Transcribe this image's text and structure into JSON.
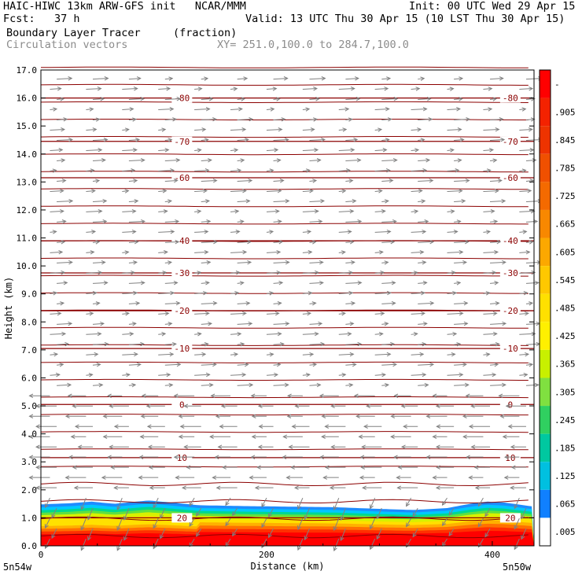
{
  "header": {
    "line1_left": "HAIC-HIWC 13km ARW-GFS init   NCAR/MMM",
    "line1_right": "Init: 00 UTC Wed 29 Apr 15",
    "line2_left": "Fcst:   37 h",
    "line2_right": "Valid: 13 UTC Thu 30 Apr 15 (10 LST Thu 30 Apr 15)",
    "field_name": "Boundary Layer Tracer",
    "field_units": "(fraction)",
    "vectors_label": "Circulation vectors",
    "cross_section": "XY= 251.0,100.0 to 284.7,100.0"
  },
  "chart_data": {
    "type": "heatmap",
    "title": "Boundary Layer Tracer",
    "units": "(fraction)",
    "xlabel": "Distance (km)",
    "ylabel": "Height (km)",
    "xlim": [
      0,
      437
    ],
    "ylim": [
      0,
      17
    ],
    "x_ticks": [
      0,
      200,
      400
    ],
    "y_ticks": [
      "0.0",
      "1.0",
      "2.0",
      "3.0",
      "4.0",
      "5.0",
      "6.0",
      "7.0",
      "8.0",
      "9.0",
      "10.0",
      "11.0",
      "12.0",
      "13.0",
      "14.0",
      "15.0",
      "16.0",
      "17.0"
    ],
    "x_end_labels": [
      "5n54w",
      "5n50w"
    ],
    "colorbar": {
      "labels": [
        "-",
        ".905",
        ".845",
        ".785",
        ".725",
        ".665",
        ".605",
        ".545",
        ".485",
        ".425",
        ".365",
        ".305",
        ".245",
        ".185",
        ".125",
        ".065",
        ".005"
      ],
      "colors": [
        "#ff0000",
        "#f42200",
        "#ee3300",
        "#f05000",
        "#f46a00",
        "#f88800",
        "#fca800",
        "#ffc800",
        "#ffe000",
        "#fff000",
        "#c8f000",
        "#80e040",
        "#30d060",
        "#00c8a0",
        "#00c0e0",
        "#1080ff",
        "#ffffff"
      ]
    },
    "tracer_top_km": [
      [
        0,
        1.48
      ],
      [
        25,
        1.52
      ],
      [
        45,
        1.58
      ],
      [
        65,
        1.5
      ],
      [
        95,
        1.62
      ],
      [
        115,
        1.55
      ],
      [
        140,
        1.45
      ],
      [
        180,
        1.42
      ],
      [
        220,
        1.4
      ],
      [
        260,
        1.38
      ],
      [
        300,
        1.32
      ],
      [
        330,
        1.28
      ],
      [
        360,
        1.35
      ],
      [
        380,
        1.5
      ],
      [
        395,
        1.58
      ],
      [
        410,
        1.55
      ],
      [
        437,
        1.4
      ]
    ],
    "isotherm_labels_c": [
      "-80",
      "-70",
      "-60",
      "-40",
      "-30",
      "-20",
      "-10",
      "0",
      "10",
      "20"
    ],
    "isotherms": [
      {
        "label": "-80",
        "height_km": 16.0
      },
      {
        "label": "-70",
        "height_km": 14.45
      },
      {
        "label": "-60",
        "height_km": 13.15
      },
      {
        "label": "-40",
        "height_km": 10.9
      },
      {
        "label": "-30",
        "height_km": 9.75
      },
      {
        "label": "-20",
        "height_km": 8.4
      },
      {
        "label": "-10",
        "height_km": 7.05
      },
      {
        "label": "0",
        "height_km": 5.05
      },
      {
        "label": "10",
        "height_km": 3.15
      },
      {
        "label": "20",
        "height_km": 1.0
      }
    ],
    "colors": {
      "isotherm": "#8b0000",
      "vector": "#808080",
      "tracer_max": "#ff0000"
    }
  }
}
